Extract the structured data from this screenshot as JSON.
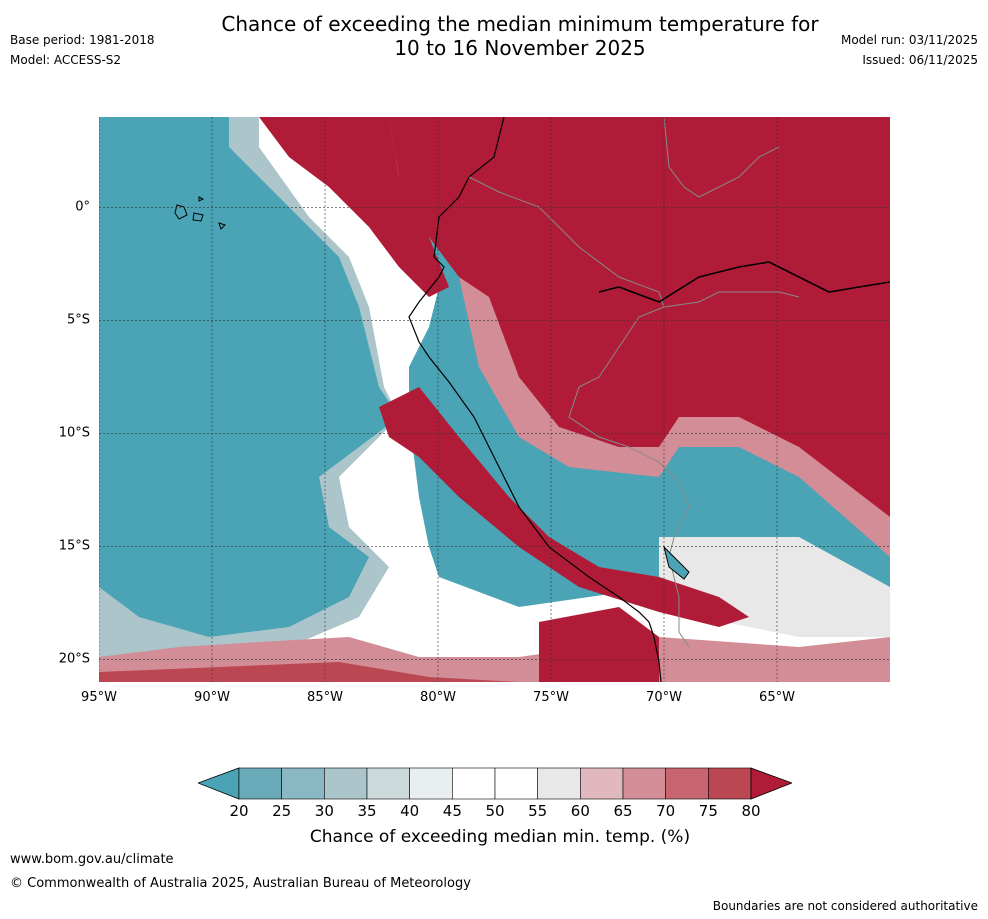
{
  "title": {
    "line1": "Chance of exceeding the median minimum temperature for",
    "line2": "10 to 16 November 2025"
  },
  "meta": {
    "base_period": "Base period: 1981-2018",
    "model": "Model: ACCESS-S2",
    "model_run": "Model run: 03/11/2025",
    "issued": "Issued: 06/11/2025"
  },
  "map": {
    "lon_range": [
      -95,
      -60
    ],
    "lat_range": [
      -21,
      4
    ],
    "lat_ticks": [
      {
        "value": 0,
        "label": "0°"
      },
      {
        "value": -5,
        "label": "5°S"
      },
      {
        "value": -10,
        "label": "10°S"
      },
      {
        "value": -15,
        "label": "15°S"
      },
      {
        "value": -20,
        "label": "20°S"
      }
    ],
    "lon_ticks": [
      {
        "value": -95,
        "label": "95°W"
      },
      {
        "value": -90,
        "label": "90°W"
      },
      {
        "value": -85,
        "label": "85°W"
      },
      {
        "value": -80,
        "label": "80°W"
      },
      {
        "value": -75,
        "label": "75°W"
      },
      {
        "value": -70,
        "label": "70°W"
      },
      {
        "value": -65,
        "label": "65°W"
      }
    ]
  },
  "colorbar": {
    "ticks": [
      "20",
      "25",
      "30",
      "35",
      "40",
      "45",
      "50",
      "55",
      "60",
      "65",
      "70",
      "75",
      "80"
    ],
    "colors": [
      "#4aa4b5",
      "#6aaab8",
      "#8ab8c2",
      "#abc5ca",
      "#cbd9db",
      "#e9eff1",
      "#ffffff",
      "#ffffff",
      "#e8e8e8",
      "#e1b8bd",
      "#d38d96",
      "#c76671",
      "#bb4753",
      "#b01c38"
    ],
    "label": "Chance of exceeding median min. temp. (%)"
  },
  "colors": {
    "teal": "#4aa4b5",
    "red": "#b01c38",
    "coast": "#000000",
    "border": "#888888"
  },
  "footer": {
    "website": "www.bom.gov.au/climate",
    "copyright": "© Commonwealth of Australia 2025, Australian Bureau of Meteorology",
    "note": "Boundaries are not considered authoritative"
  }
}
